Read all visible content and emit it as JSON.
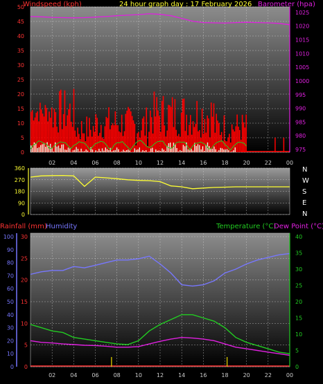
{
  "header": {
    "left": "Windspeed (kph)",
    "center": "24 hour graph day : 17 February 2026",
    "right": "Barometer (hpa)"
  },
  "colors": {
    "wind": "#ff0000",
    "gust": "#dd0000",
    "baro": "#e020e0",
    "dir": "#ffff33",
    "temp": "#22cc22",
    "dew": "#e020e0",
    "humidity": "#7777ff",
    "rain": "#ff3333",
    "rain_bar": "#ddcc00",
    "gust_light": "#e8f5e0",
    "wind_green": "#22cc22"
  },
  "chart_data": [
    {
      "id": "wind_baro",
      "type": "bar",
      "title": "24 hour graph day : 17 February 2026",
      "ylabel_left": "Windspeed (kph)",
      "ylabel_right": "Barometer (hpa)",
      "x_ticks": [
        "02",
        "04",
        "06",
        "08",
        "10",
        "12",
        "14",
        "16",
        "18",
        "20",
        "22",
        "00"
      ],
      "y_left_ticks": [
        "0",
        "5",
        "10",
        "15",
        "20",
        "25",
        "30",
        "35",
        "40",
        "45",
        "50"
      ],
      "y_right_ticks": [
        "975",
        "980",
        "985",
        "990",
        "995",
        "1000",
        "1005",
        "1010",
        "1015",
        "1020",
        "1025"
      ],
      "ylim_left": [
        0,
        50
      ],
      "ylim_right": [
        974,
        1027
      ],
      "series": [
        {
          "name": "Barometer (hpa)",
          "axis": "right",
          "type": "line",
          "x": [
            0,
            1,
            2,
            3,
            4,
            5,
            6,
            7,
            8,
            9,
            10,
            11,
            12,
            13,
            14,
            15,
            16,
            17,
            18,
            19,
            20,
            21,
            22,
            23,
            24
          ],
          "values": [
            1023.5,
            1023.4,
            1023.2,
            1023.1,
            1023.0,
            1023.1,
            1023.3,
            1023.5,
            1023.8,
            1024.0,
            1024.2,
            1024.5,
            1024.3,
            1023.8,
            1022.8,
            1021.8,
            1021.3,
            1021.2,
            1021.1,
            1021.3,
            1021.4,
            1021.3,
            1021.2,
            1021.0,
            1020.5
          ]
        }
      ],
      "wind_avg_max": 4,
      "gust_max": 24
    },
    {
      "id": "direction",
      "type": "line",
      "y_ticks": [
        "360",
        "270",
        "180",
        "90",
        "0"
      ],
      "y_right_labels": [
        "N",
        "W",
        "S",
        "E",
        "N"
      ],
      "ylim": [
        0,
        360
      ],
      "series": [
        {
          "name": "Wind Direction",
          "x": [
            0,
            1,
            2,
            3,
            4,
            5,
            6,
            7,
            8,
            9,
            10,
            11,
            12,
            13,
            14,
            15,
            16,
            17,
            18,
            19,
            20,
            21,
            22,
            23,
            24
          ],
          "values": [
            290,
            300,
            302,
            303,
            300,
            218,
            290,
            285,
            278,
            270,
            265,
            263,
            255,
            222,
            215,
            200,
            205,
            210,
            212,
            215,
            215,
            215,
            215,
            215,
            215
          ]
        }
      ]
    },
    {
      "id": "temp_rain_hum",
      "type": "line",
      "ylabel_left_1": "Rainfall (mm)",
      "ylabel_left_2": "Humidity",
      "ylabel_right_1": "Temperature (°C)",
      "ylabel_right_2": "Dew Point (°C)",
      "x_ticks": [
        "02",
        "04",
        "06",
        "08",
        "10",
        "12",
        "14",
        "16",
        "18",
        "20",
        "22",
        "00"
      ],
      "humidity_ticks": [
        "0",
        "10",
        "20",
        "30",
        "40",
        "50",
        "60",
        "70",
        "80",
        "90",
        "100"
      ],
      "rain_ticks": [
        "0",
        "5",
        "10",
        "15",
        "20",
        "25",
        "30"
      ],
      "temp_ticks": [
        "0",
        "5",
        "10",
        "15",
        "20",
        "25",
        "30",
        "35",
        "40"
      ],
      "ylim_humidity": [
        0,
        100
      ],
      "ylim_rain": [
        0,
        30
      ],
      "ylim_temp": [
        0,
        40
      ],
      "series": [
        {
          "name": "Humidity",
          "x": [
            0,
            1,
            2,
            3,
            4,
            5,
            6,
            7,
            8,
            9,
            10,
            11,
            12,
            13,
            14,
            15,
            16,
            17,
            18,
            19,
            20,
            21,
            22,
            23,
            24
          ],
          "values": [
            71,
            73,
            74,
            74,
            77,
            76,
            78,
            80,
            82,
            82,
            83,
            85,
            79,
            72,
            63,
            62,
            63,
            66,
            72,
            75,
            79,
            82,
            84,
            86,
            87
          ]
        },
        {
          "name": "Temperature (°C)",
          "x": [
            0,
            1,
            2,
            3,
            4,
            5,
            6,
            7,
            8,
            9,
            10,
            11,
            12,
            13,
            14,
            15,
            16,
            17,
            18,
            19,
            20,
            21,
            22,
            23,
            24
          ],
          "values": [
            13.0,
            12.0,
            11.0,
            10.5,
            9.0,
            8.5,
            8.0,
            7.5,
            7.0,
            6.8,
            8.0,
            11.0,
            13.0,
            14.5,
            16.0,
            16.0,
            15.0,
            14.0,
            12.0,
            9.0,
            7.5,
            6.5,
            5.5,
            4.5,
            4.0
          ]
        },
        {
          "name": "Dew Point (°C)",
          "x": [
            0,
            1,
            2,
            3,
            4,
            5,
            6,
            7,
            8,
            9,
            10,
            11,
            12,
            13,
            14,
            15,
            16,
            17,
            18,
            19,
            20,
            21,
            22,
            23,
            24
          ],
          "values": [
            8.0,
            7.5,
            7.3,
            7.0,
            6.8,
            6.6,
            6.5,
            6.3,
            6.0,
            6.0,
            6.2,
            7.0,
            7.8,
            8.5,
            9.0,
            8.8,
            8.5,
            8.0,
            7.0,
            6.0,
            5.5,
            5.0,
            4.5,
            4.0,
            3.5
          ]
        },
        {
          "name": "Rainfall (mm)",
          "x": [
            0,
            24
          ],
          "values": [
            0,
            0
          ]
        }
      ],
      "rain_bar_hours": [
        7.5,
        18.2
      ]
    }
  ]
}
